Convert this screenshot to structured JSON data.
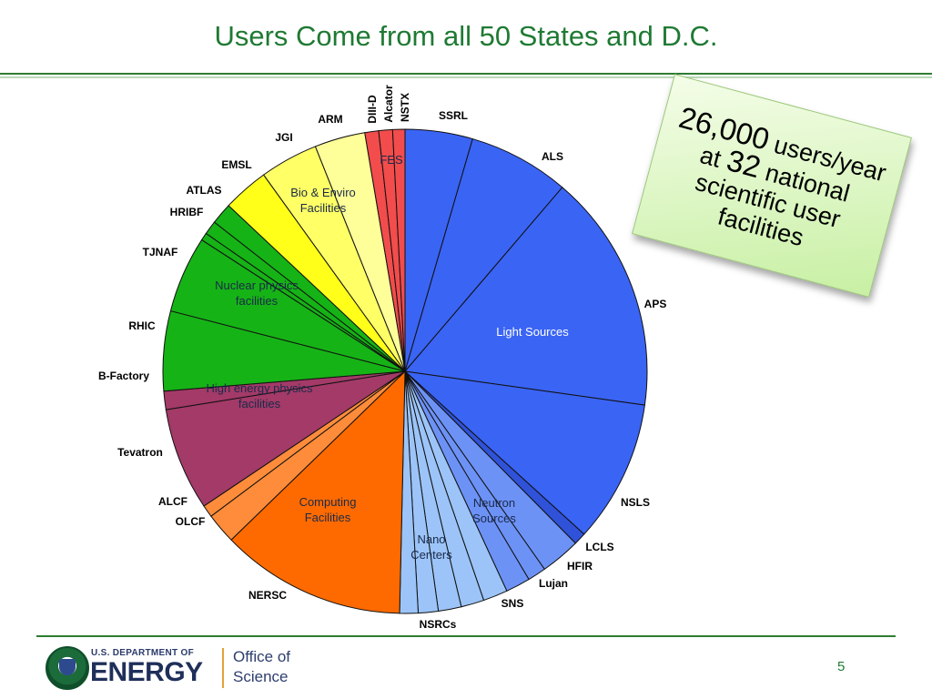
{
  "slide": {
    "title": "Users Come from all 50 States and D.C.",
    "page_number": "5"
  },
  "callout": {
    "line1": "26,000",
    "line1_rest": " users/year",
    "line2": "at ",
    "line2_num": "32",
    "line2_rest": " national",
    "line3": "scientific user",
    "line4": "facilities"
  },
  "footer": {
    "department": "U.S. DEPARTMENT OF",
    "energy": "ENERGY",
    "office_line1": "Office of",
    "office_line2": "Science"
  },
  "chart_data": {
    "type": "pie",
    "start_angle_deg": 0,
    "direction": "clockwise",
    "slices": [
      {
        "label": "SSRL",
        "value": 4.4,
        "color": "#3a64f4"
      },
      {
        "label": "ALS",
        "value": 6.6,
        "color": "#3a64f4"
      },
      {
        "label": "APS",
        "value": 15.6,
        "color": "#3a64f4"
      },
      {
        "label": "NSLS",
        "value": 9.3,
        "color": "#3a64f4"
      },
      {
        "label": "LCLS",
        "value": 0.8,
        "color": "#2f52d9"
      },
      {
        "label": "HFIR",
        "value": 2.6,
        "color": "#6d92f6"
      },
      {
        "label": "Lujan",
        "value": 1.2,
        "color": "#6d92f6"
      },
      {
        "label": "SNS",
        "value": 1.6,
        "color": "#6d92f6"
      },
      {
        "label": "",
        "value": 1.6,
        "color": "#9cc4f8"
      },
      {
        "label": "",
        "value": 1.5,
        "color": "#9cc4f8"
      },
      {
        "label": "NSRCs",
        "value": 1.5,
        "color": "#9cc4f8"
      },
      {
        "label": "",
        "value": 1.3,
        "color": "#9cc4f8"
      },
      {
        "label": "",
        "value": 1.2,
        "color": "#9cc4f8"
      },
      {
        "label": "NERSC",
        "value": 12.1,
        "color": "#ff6a00"
      },
      {
        "label": "OLCF",
        "value": 2.0,
        "color": "#ff8c3a"
      },
      {
        "label": "ALCF",
        "value": 0.8,
        "color": "#ff8c3a"
      },
      {
        "label": "Tevatron",
        "value": 6.7,
        "color": "#a33a68"
      },
      {
        "label": "B-Factory",
        "value": 1.2,
        "color": "#a33a68"
      },
      {
        "label": "RHIC",
        "value": 5.2,
        "color": "#16b316"
      },
      {
        "label": "TJNAF",
        "value": 5.0,
        "color": "#16b316"
      },
      {
        "label": "",
        "value": 0.5,
        "color": "#16b316"
      },
      {
        "label": "HRIBF",
        "value": 0.9,
        "color": "#16b316"
      },
      {
        "label": "ATLAS",
        "value": 1.4,
        "color": "#16b316"
      },
      {
        "label": "EMSL",
        "value": 3.0,
        "color": "#ffff19"
      },
      {
        "label": "JGI",
        "value": 3.8,
        "color": "#ffff66"
      },
      {
        "label": "ARM",
        "value": 3.3,
        "color": "#ffff99"
      },
      {
        "label": "DIII-D",
        "value": 0.9,
        "color": "#f24c4c"
      },
      {
        "label": "Alcator",
        "value": 0.9,
        "color": "#f24c4c"
      },
      {
        "label": "NSTX",
        "value": 0.8,
        "color": "#f24c4c"
      }
    ],
    "group_labels": [
      {
        "text": "Light Sources",
        "color": "#ffffff"
      },
      {
        "text": "Neutron\nSources",
        "color": "#1a2a4a"
      },
      {
        "text": "Nano\nCenters",
        "color": "#1a2a4a"
      },
      {
        "text": "Computing\nFacilities",
        "color": "#1a2a4a"
      },
      {
        "text": "High energy physics\nfacilities",
        "color": "#1a2a4a"
      },
      {
        "text": "Nuclear physics\nfacilities",
        "color": "#1a2a4a"
      },
      {
        "text": "Bio & Enviro\nFacilities",
        "color": "#1a2a4a"
      },
      {
        "text": "FES",
        "color": "#1a2a4a"
      }
    ]
  }
}
